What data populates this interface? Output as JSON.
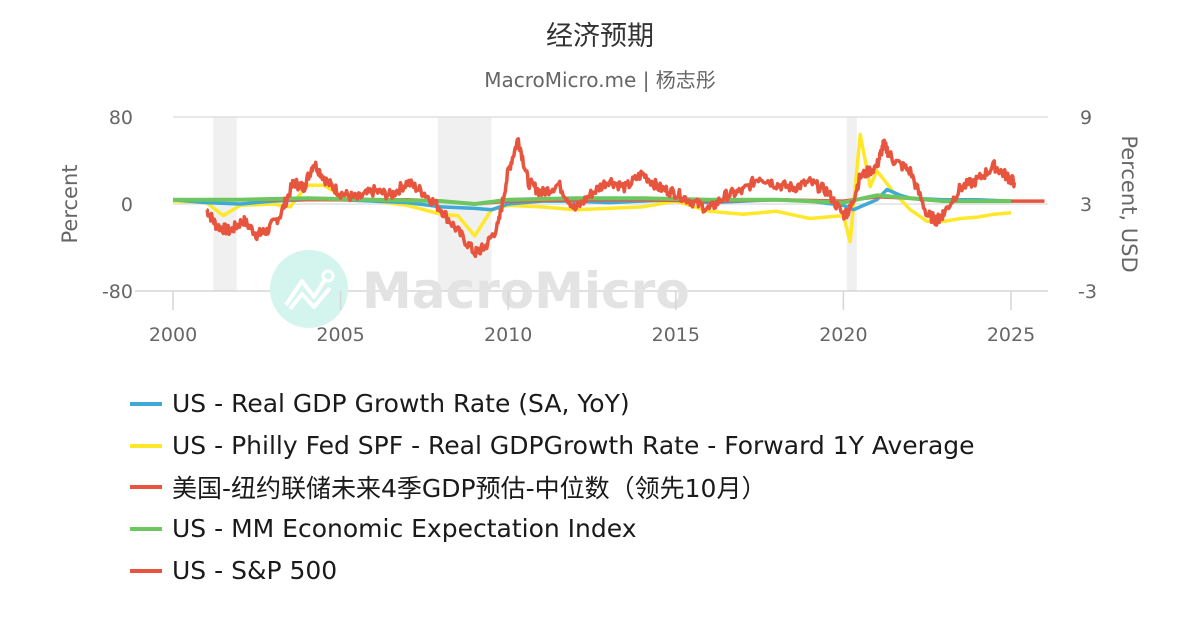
{
  "header": {
    "title": "经济预期",
    "subtitle": "MacroMicro.me | 杨志彤"
  },
  "watermark": {
    "text": "MacroMicro",
    "icon": "macromicro-logo-icon"
  },
  "colors": {
    "gdp": "#3fa9d8",
    "spf": "#ffe82a",
    "nyfed": "#e8553e",
    "mm_index": "#6cc760",
    "sp500": "#e8553e",
    "recession": "#f0f0f0",
    "grid": "#e0e0e0"
  },
  "chart_data": {
    "type": "line",
    "title": "经济预期",
    "subtitle": "MacroMicro.me | 杨志彤",
    "xlabel": "",
    "ylabel_left": "Percent",
    "ylabel_right": "Percent, USD",
    "xlim": [
      2000,
      2026
    ],
    "ylim_left": [
      -80,
      80
    ],
    "ylim_right": [
      -3,
      9
    ],
    "x_ticks": [
      "2000",
      "2005",
      "2010",
      "2015",
      "2020",
      "2025"
    ],
    "y_ticks_left": [
      "80",
      "0",
      "-80"
    ],
    "y_ticks_right": [
      "9",
      "3",
      "-3"
    ],
    "grid": true,
    "legend_position": "bottom",
    "recession_shading": [
      [
        2001.2,
        2001.9
      ],
      [
        2007.9,
        2009.5
      ],
      [
        2020.1,
        2020.4
      ]
    ],
    "series": [
      {
        "name": "US - Real GDP Growth Rate (SA, YoY)",
        "axis": "right",
        "color": "#3fa9d8",
        "x": [
          2000,
          2001,
          2002,
          2003,
          2004,
          2005,
          2006,
          2007,
          2008,
          2009,
          2009.5,
          2010,
          2011,
          2012,
          2013,
          2014,
          2015,
          2016,
          2017,
          2018,
          2019,
          2020,
          2020.3,
          2020.6,
          2021,
          2021.3,
          2021.7,
          2022,
          2023,
          2024,
          2025
        ],
        "y": [
          3.3,
          3.1,
          3.0,
          3.2,
          3.3,
          3.3,
          3.2,
          3.1,
          2.8,
          2.7,
          2.6,
          3.0,
          3.2,
          3.2,
          3.1,
          3.2,
          3.3,
          3.1,
          3.2,
          3.3,
          3.2,
          2.9,
          2.6,
          2.9,
          3.3,
          4.0,
          3.6,
          3.4,
          3.3,
          3.3,
          3.2
        ]
      },
      {
        "name": "US - Philly Fed SPF - Real GDPGrowth Rate - Forward 1Y Average",
        "axis": "right",
        "color": "#ffe82a",
        "x": [
          2000,
          2001,
          2001.5,
          2002,
          2003,
          2003.5,
          2004,
          2004.5,
          2005,
          2006,
          2007,
          2007.5,
          2008,
          2008.5,
          2009,
          2009.5,
          2010,
          2011,
          2012,
          2013,
          2014,
          2015,
          2016,
          2017,
          2018,
          2019,
          2020,
          2020.2,
          2020.5,
          2020.8,
          2021,
          2021.5,
          2022,
          2022.5,
          2023,
          2023.5,
          2024,
          2024.5,
          2025
        ],
        "y": [
          3.2,
          3.1,
          2.2,
          2.9,
          3.0,
          2.8,
          4.3,
          4.3,
          3.6,
          3.2,
          2.9,
          2.6,
          2.3,
          2.2,
          0.8,
          2.6,
          2.9,
          2.8,
          2.6,
          2.7,
          2.8,
          3.2,
          2.5,
          2.3,
          2.5,
          2.0,
          2.2,
          0.4,
          7.8,
          4.2,
          5.3,
          3.8,
          2.6,
          1.8,
          1.8,
          2.0,
          2.1,
          2.3,
          2.4
        ]
      },
      {
        "name": "美国-纽约联储未来4季GDP预估-中位数（领先10月）",
        "axis": "right",
        "color": "#e8553e",
        "x": [
          2001,
          2003,
          2005,
          2007,
          2008,
          2009,
          2010,
          2012,
          2014,
          2016,
          2018,
          2020,
          2021,
          2022,
          2023,
          2024,
          2025,
          2026
        ],
        "y": [
          3.3,
          3.3,
          3.3,
          3.3,
          3.2,
          3.0,
          3.2,
          3.3,
          3.3,
          3.2,
          3.3,
          3.2,
          3.5,
          3.4,
          3.2,
          3.2,
          3.2,
          3.2
        ]
      },
      {
        "name": "US - MM Economic Expectation Index",
        "axis": "right",
        "color": "#6cc760",
        "x": [
          2000,
          2002,
          2004,
          2006,
          2008,
          2009,
          2010,
          2012,
          2014,
          2016,
          2018,
          2020,
          2021,
          2022,
          2023,
          2024,
          2025
        ],
        "y": [
          3.3,
          3.3,
          3.4,
          3.3,
          3.2,
          3.0,
          3.3,
          3.4,
          3.4,
          3.3,
          3.3,
          3.1,
          3.6,
          3.4,
          3.2,
          3.2,
          3.2
        ]
      },
      {
        "name": "US - S&P 500",
        "axis": "left",
        "color": "#e8553e",
        "x": [
          2001,
          2001.3,
          2001.7,
          2002.1,
          2002.5,
          2002.8,
          2003.2,
          2003.6,
          2003.9,
          2004.2,
          2004.6,
          2005,
          2005.5,
          2006,
          2006.5,
          2007,
          2007.5,
          2008,
          2008.5,
          2009,
          2009.3,
          2009.7,
          2010,
          2010.3,
          2010.6,
          2011,
          2011.5,
          2012,
          2012.5,
          2013,
          2013.5,
          2014,
          2014.5,
          2015,
          2015.5,
          2016,
          2016.5,
          2017,
          2017.5,
          2018,
          2018.5,
          2019,
          2019.5,
          2020,
          2020.2,
          2020.5,
          2021,
          2021.2,
          2021.5,
          2022,
          2022.5,
          2022.8,
          2023,
          2023.5,
          2024,
          2024.5,
          2024.9,
          2025.1
        ],
        "y": [
          -5,
          -20,
          -25,
          -15,
          -28,
          -25,
          -10,
          20,
          15,
          38,
          20,
          10,
          5,
          12,
          8,
          20,
          10,
          -5,
          -25,
          -45,
          -40,
          -20,
          30,
          60,
          20,
          10,
          18,
          -5,
          10,
          22,
          15,
          28,
          15,
          10,
          2,
          -5,
          8,
          12,
          25,
          18,
          15,
          20,
          12,
          -10,
          -5,
          25,
          35,
          55,
          40,
          30,
          -10,
          -15,
          -8,
          15,
          22,
          35,
          25,
          20
        ]
      }
    ]
  },
  "axes": {
    "left_title": "Percent",
    "right_title": "Percent, USD",
    "left_ticks": [
      "80",
      "0",
      "-80"
    ],
    "right_ticks": [
      "9",
      "3",
      "-3"
    ],
    "x_ticks": [
      "2000",
      "2005",
      "2010",
      "2015",
      "2020",
      "2025"
    ]
  },
  "legend": {
    "items": [
      {
        "label": "US - Real GDP Growth Rate (SA, YoY)",
        "color": "#3fa9d8"
      },
      {
        "label": "US - Philly Fed SPF - Real GDPGrowth Rate - Forward 1Y Average",
        "color": "#ffe82a"
      },
      {
        "label": "美国-纽约联储未来4季GDP预估-中位数（领先10月）",
        "color": "#e8553e"
      },
      {
        "label": "US - MM Economic Expectation Index",
        "color": "#6cc760"
      },
      {
        "label": "US - S&P 500",
        "color": "#e8553e"
      }
    ]
  }
}
